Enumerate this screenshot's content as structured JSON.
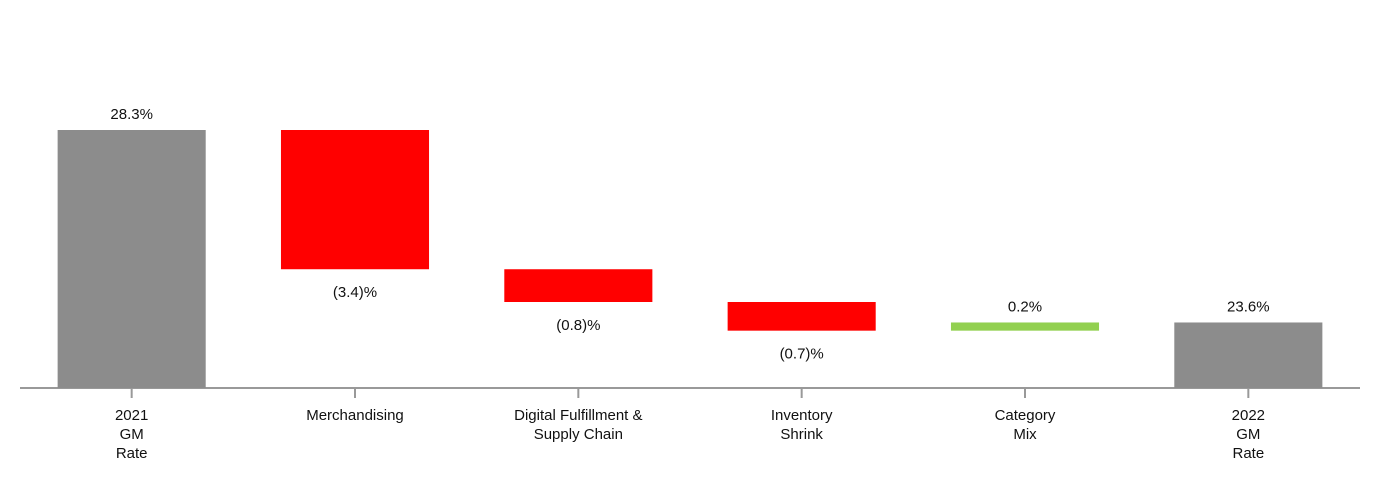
{
  "chart_data": {
    "type": "waterfall",
    "categories": [
      [
        "2021",
        "GM",
        "Rate"
      ],
      [
        "Merchandising"
      ],
      [
        "Digital Fulfillment &",
        "Supply Chain"
      ],
      [
        "Inventory",
        "Shrink"
      ],
      [
        "Category",
        "Mix"
      ],
      [
        "2022",
        "GM",
        "Rate"
      ]
    ],
    "values": [
      28.3,
      -3.4,
      -0.8,
      -0.7,
      0.2,
      23.6
    ],
    "value_labels": [
      "28.3%",
      "(3.4)%",
      "(0.8)%",
      "(0.7)%",
      "0.2%",
      "23.6%"
    ],
    "is_total": [
      true,
      false,
      false,
      false,
      false,
      true
    ],
    "total_color": "#8c8c8c",
    "increase_color": "#92d050",
    "decrease_color": "#ff0000",
    "ylim": [
      22,
      28.3
    ]
  }
}
